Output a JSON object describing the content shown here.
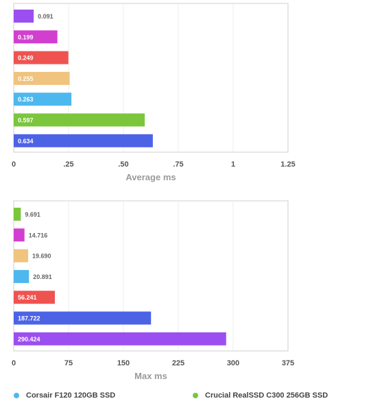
{
  "chart_data": [
    {
      "type": "bar",
      "orientation": "horizontal",
      "xlabel": "Average ms",
      "xlim": [
        0,
        1.25
      ],
      "ticks": [
        "0",
        ".25",
        ".50",
        ".75",
        "1",
        "1.25"
      ],
      "tick_values": [
        0,
        0.25,
        0.5,
        0.75,
        1,
        1.25
      ],
      "grid": true,
      "bars": [
        {
          "value": 0.091,
          "label": "0.091",
          "color": "#9b4ff0"
        },
        {
          "value": 0.199,
          "label": "0.199",
          "color": "#d23fcf"
        },
        {
          "value": 0.249,
          "label": "0.249",
          "color": "#ef5350"
        },
        {
          "value": 0.255,
          "label": "0.255",
          "color": "#f0c37e"
        },
        {
          "value": 0.263,
          "label": "0.263",
          "color": "#4db8ee"
        },
        {
          "value": 0.597,
          "label": "0.597",
          "color": "#7bc63c"
        },
        {
          "value": 0.634,
          "label": "0.634",
          "color": "#4d63e6"
        }
      ]
    },
    {
      "type": "bar",
      "orientation": "horizontal",
      "xlabel": "Max ms",
      "xlim": [
        0,
        375
      ],
      "ticks": [
        "0",
        "75",
        "150",
        "225",
        "300",
        "375"
      ],
      "tick_values": [
        0,
        75,
        150,
        225,
        300,
        375
      ],
      "grid": true,
      "bars": [
        {
          "value": 9.691,
          "label": "9.691",
          "color": "#7bc63c"
        },
        {
          "value": 14.716,
          "label": "14.716",
          "color": "#d23fcf"
        },
        {
          "value": 19.69,
          "label": "19.690",
          "color": "#f0c37e"
        },
        {
          "value": 20.891,
          "label": "20.891",
          "color": "#4db8ee"
        },
        {
          "value": 56.241,
          "label": "56.241",
          "color": "#ef5350"
        },
        {
          "value": 187.722,
          "label": "187.722",
          "color": "#4d63e6"
        },
        {
          "value": 290.424,
          "label": "290.424",
          "color": "#9b4ff0"
        }
      ]
    }
  ],
  "legend": [
    {
      "label": "Corsair F120 120GB SSD",
      "color": "#4db8ee"
    },
    {
      "label": "Crucial RealSSD C300 256GB SSD",
      "color": "#7bc63c"
    }
  ]
}
